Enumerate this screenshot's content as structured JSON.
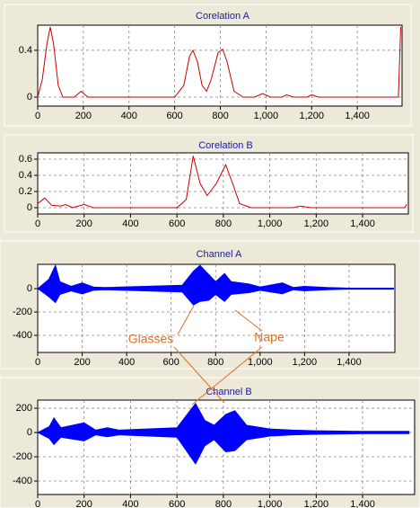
{
  "chart_data": [
    {
      "type": "line",
      "title": "Corelation A",
      "color": "#cc0000",
      "x": [
        0,
        20,
        40,
        55,
        70,
        90,
        110,
        160,
        190,
        220,
        600,
        640,
        665,
        680,
        700,
        720,
        740,
        760,
        790,
        810,
        830,
        860,
        900,
        950,
        985,
        1020,
        1070,
        1090,
        1120,
        1180,
        1200,
        1230,
        1580,
        1590
      ],
      "values": [
        0,
        0.15,
        0.45,
        0.6,
        0.45,
        0.1,
        0,
        0,
        0.05,
        0,
        0,
        0.1,
        0.35,
        0.4,
        0.3,
        0.1,
        0.05,
        0.15,
        0.38,
        0.41,
        0.3,
        0.05,
        0,
        0,
        0.03,
        0,
        0,
        0.02,
        0,
        0,
        0.02,
        0,
        0,
        0.6
      ],
      "xlim": [
        0,
        1596
      ],
      "ylim": [
        -0.077,
        0.615
      ],
      "xticks": [
        0,
        200,
        400,
        600,
        800,
        {
          "value": 1000,
          "label": "1,000"
        },
        {
          "value": 1200,
          "label": "1,200"
        },
        {
          "value": 1400,
          "label": "1,400"
        }
      ],
      "yticks": [
        0,
        0.4
      ],
      "grid": true
    },
    {
      "type": "line",
      "title": "Corelation B",
      "color": "#cc0000",
      "x": [
        0,
        30,
        60,
        100,
        120,
        150,
        200,
        240,
        600,
        640,
        670,
        700,
        730,
        770,
        810,
        840,
        870,
        920,
        1100,
        1130,
        1180,
        1580,
        1590
      ],
      "values": [
        0.05,
        0.12,
        0.03,
        0.02,
        0.04,
        0,
        0.04,
        0,
        0,
        0.1,
        0.64,
        0.3,
        0.15,
        0.3,
        0.53,
        0.3,
        0.05,
        0,
        0,
        0.02,
        0,
        0,
        0.04
      ],
      "xlim": [
        0,
        1597
      ],
      "ylim": [
        -0.078,
        0.678
      ],
      "xticks": [
        0,
        200,
        400,
        600,
        800,
        {
          "value": 1000,
          "label": "1,000"
        },
        {
          "value": 1200,
          "label": "1,200"
        },
        {
          "value": 1400,
          "label": "1,400"
        }
      ],
      "yticks": [
        0,
        0.2,
        0.4,
        0.6
      ],
      "grid": true
    },
    {
      "type": "area",
      "title": "Channel A",
      "color": "#0000ff",
      "x": [
        0,
        50,
        80,
        100,
        150,
        200,
        250,
        300,
        650,
        700,
        730,
        770,
        800,
        840,
        870,
        950,
        1000,
        1100,
        1150,
        1200,
        1300,
        1400,
        1600
      ],
      "upper": [
        0,
        80,
        200,
        60,
        20,
        50,
        15,
        10,
        30,
        150,
        200,
        120,
        60,
        130,
        60,
        40,
        15,
        50,
        10,
        20,
        10,
        5,
        5
      ],
      "lower": [
        0,
        -70,
        -120,
        -50,
        -20,
        -45,
        -15,
        -10,
        -30,
        -140,
        -110,
        -100,
        -50,
        -110,
        -50,
        -35,
        -15,
        -45,
        -10,
        -20,
        -10,
        -5,
        -5
      ],
      "xlim": [
        0,
        1606
      ],
      "ylim": [
        -546,
        208
      ],
      "xticks": [
        0,
        200,
        400,
        600,
        800,
        {
          "value": 1000,
          "label": "1,000"
        },
        {
          "value": 1200,
          "label": "1,200"
        },
        {
          "value": 1400,
          "label": "1,400"
        }
      ],
      "yticks": [
        0,
        -200,
        -400
      ],
      "grid": true,
      "annotations": [
        "Glasses",
        "Nape"
      ]
    },
    {
      "type": "area",
      "title": "Channel B",
      "color": "#0000ff",
      "x": [
        0,
        50,
        70,
        100,
        200,
        250,
        300,
        350,
        600,
        680,
        720,
        760,
        810,
        850,
        900,
        1000,
        1100,
        1200,
        1400,
        1600
      ],
      "upper": [
        0,
        50,
        120,
        40,
        80,
        20,
        40,
        20,
        40,
        240,
        100,
        60,
        150,
        180,
        60,
        30,
        20,
        15,
        10,
        10
      ],
      "lower": [
        0,
        -50,
        -100,
        -40,
        -70,
        -20,
        -35,
        -20,
        -40,
        -260,
        -110,
        -60,
        -160,
        -150,
        -60,
        -30,
        -20,
        -15,
        -10,
        -10
      ],
      "xlim": [
        0,
        1624
      ],
      "ylim": [
        -511,
        267
      ],
      "xticks": [
        0,
        200,
        400,
        600,
        800,
        {
          "value": 1000,
          "label": "1,000"
        },
        {
          "value": 1200,
          "label": "1,200"
        },
        {
          "value": 1400,
          "label": "1,400"
        }
      ],
      "yticks": [
        200,
        0,
        -200,
        -400
      ],
      "grid": true
    }
  ]
}
